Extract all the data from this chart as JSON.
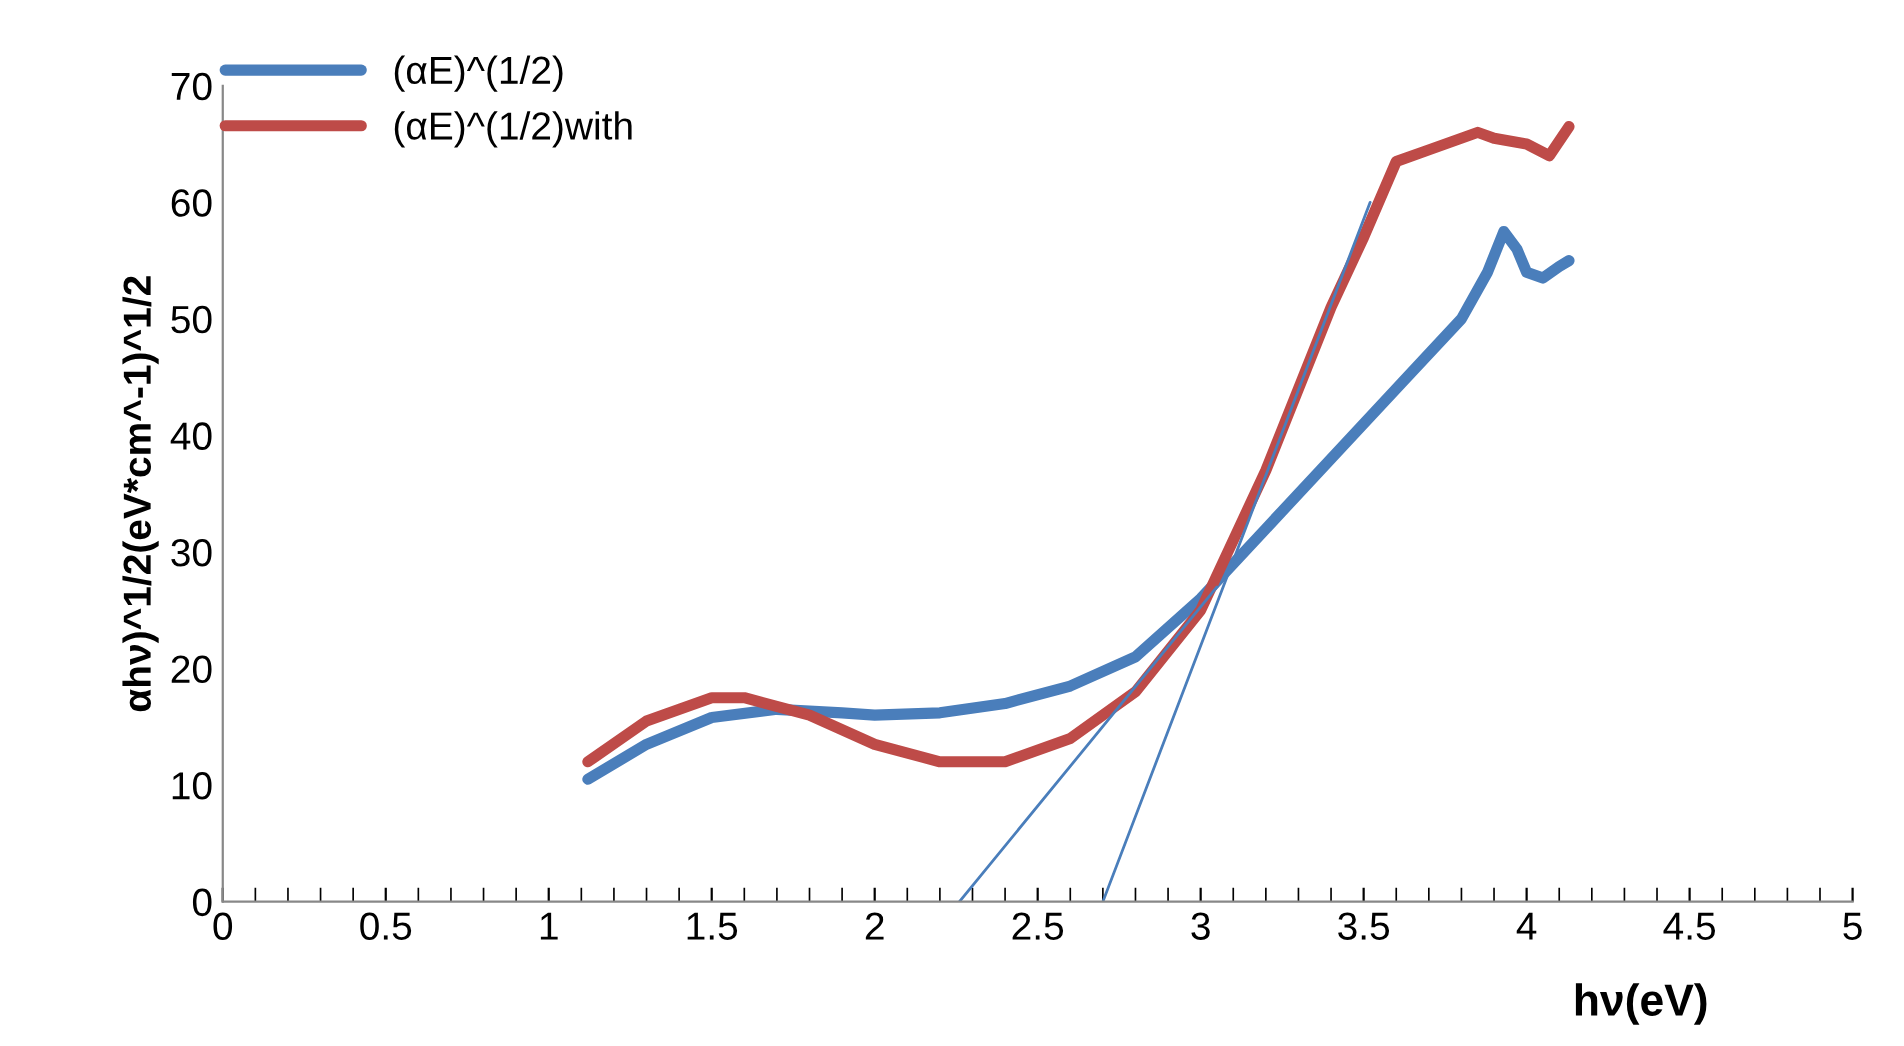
{
  "chart_data": {
    "type": "line",
    "xlabel": "hν(eV)",
    "ylabel": "αhν)^1/2(eV*cm^-1)^1/2",
    "xlim": [
      0,
      5
    ],
    "ylim": [
      0,
      70
    ],
    "xticks": [
      0,
      0.5,
      1,
      1.5,
      2,
      2.5,
      3,
      3.5,
      4,
      4.5,
      5
    ],
    "yticks": [
      0,
      10,
      20,
      30,
      40,
      50,
      60,
      70
    ],
    "grid": false,
    "legend": "top left",
    "marker": "none",
    "line_style": "solid",
    "series": [
      {
        "name": "(αE)^(1/2)",
        "color": "#4a7ebb",
        "x": [
          1.12,
          1.3,
          1.5,
          1.7,
          1.9,
          2.0,
          2.2,
          2.4,
          2.6,
          2.8,
          3.0,
          3.2,
          3.4,
          3.6,
          3.8,
          3.88,
          3.93,
          3.97,
          4.0,
          4.05,
          4.1,
          4.13
        ],
        "values": [
          10.5,
          13.5,
          15.8,
          16.5,
          16.2,
          16,
          16.2,
          17,
          18.5,
          21,
          26,
          32,
          38,
          44,
          50,
          54,
          57.5,
          56,
          54,
          53.5,
          54.5,
          55
        ]
      },
      {
        "name": "(αE)^(1/2)with",
        "color": "#be4b48",
        "x": [
          1.12,
          1.3,
          1.5,
          1.6,
          1.8,
          2.0,
          2.2,
          2.4,
          2.6,
          2.8,
          3.0,
          3.2,
          3.4,
          3.5,
          3.6,
          3.7,
          3.85,
          3.9,
          4.0,
          4.07,
          4.13
        ],
        "values": [
          12,
          15.5,
          17.5,
          17.5,
          16,
          13.5,
          12,
          12,
          14,
          18,
          25,
          37,
          51,
          57,
          63.5,
          64.5,
          66,
          65.5,
          65,
          64,
          66.5
        ]
      },
      {
        "type": "line",
        "color": "#4a7ebb",
        "x": [
          2.26,
          3.05
        ],
        "values": [
          0,
          27
        ]
      },
      {
        "type": "line",
        "color": "#4a7ebb",
        "x": [
          2.7,
          3.52
        ],
        "values": [
          0,
          60
        ]
      }
    ]
  }
}
